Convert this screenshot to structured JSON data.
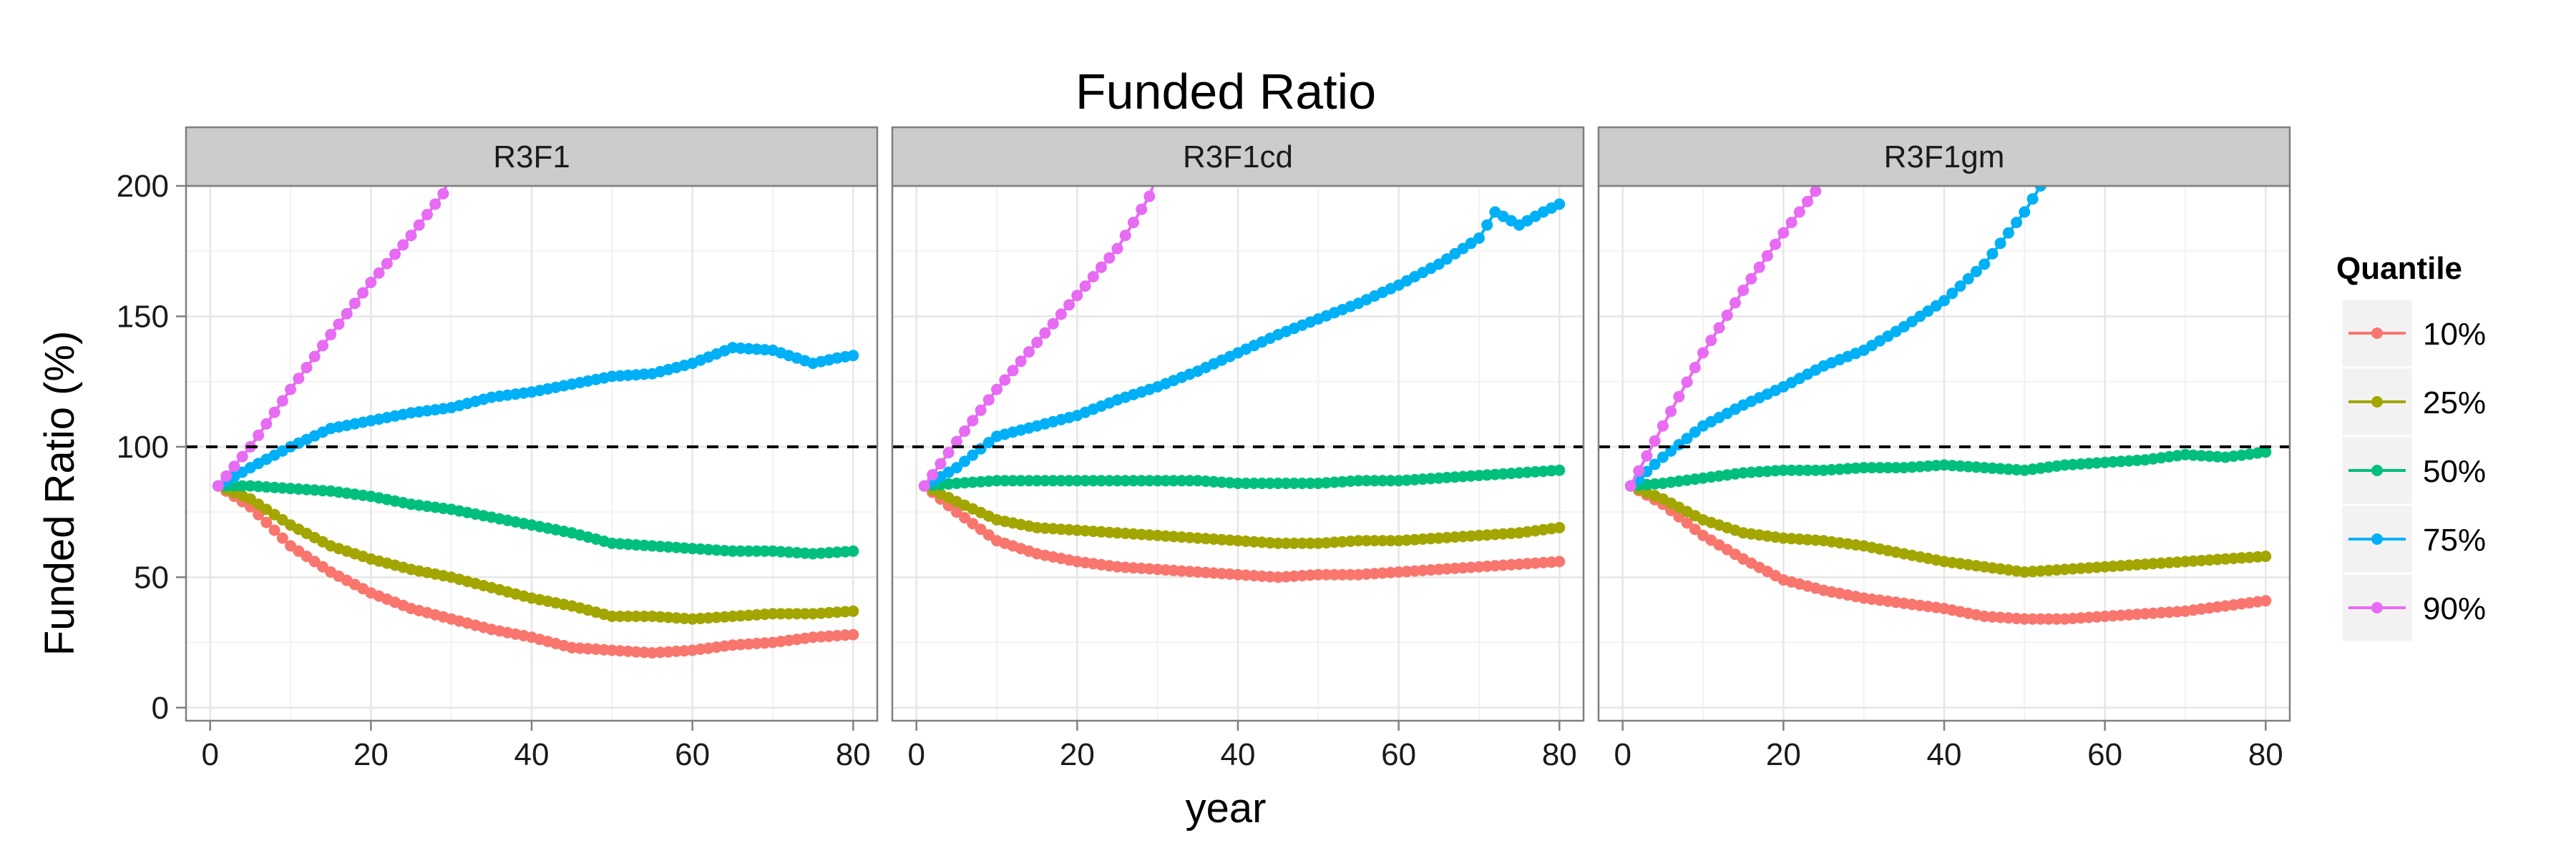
{
  "chart_data": {
    "type": "line",
    "title": "Funded Ratio",
    "xlabel": "year",
    "ylabel": "Funded Ratio (%)",
    "xlim": [
      -3,
      83
    ],
    "ylim": [
      -5,
      200
    ],
    "x_ticks": [
      0,
      20,
      40,
      60,
      80
    ],
    "y_ticks": [
      0,
      50,
      100,
      150,
      200
    ],
    "x_tick_labels": [
      "0",
      "20",
      "40",
      "60",
      "80"
    ],
    "y_tick_labels": [
      "0",
      "50",
      "100",
      "150",
      "200"
    ],
    "reference_line": {
      "y": 100,
      "style": "dashed",
      "color": "#000000"
    },
    "grid": true,
    "panel_background": "#ffffff",
    "strip_background": "#cccccc",
    "legend": {
      "title": "Quantile",
      "placement": "right",
      "entries": [
        "10%",
        "25%",
        "50%",
        "75%",
        "90%"
      ]
    },
    "series_colors": {
      "10%": "#F8766D",
      "25%": "#A3A500",
      "50%": "#00BF7D",
      "75%": "#00B0F6",
      "90%": "#E76BF3"
    },
    "panels": [
      {
        "label": "R3F1",
        "series": [
          {
            "name": "10%",
            "points": [
              [
                1,
                85
              ],
              [
                5,
                77
              ],
              [
                10,
                62
              ],
              [
                15,
                52
              ],
              [
                20,
                44
              ],
              [
                25,
                38
              ],
              [
                30,
                34
              ],
              [
                35,
                30
              ],
              [
                40,
                27
              ],
              [
                45,
                23
              ],
              [
                50,
                22
              ],
              [
                55,
                21
              ],
              [
                60,
                22
              ],
              [
                65,
                24
              ],
              [
                70,
                25
              ],
              [
                75,
                27
              ],
              [
                80,
                28
              ]
            ]
          },
          {
            "name": "25%",
            "points": [
              [
                1,
                85
              ],
              [
                5,
                80
              ],
              [
                10,
                70
              ],
              [
                15,
                62
              ],
              [
                20,
                57
              ],
              [
                25,
                53
              ],
              [
                30,
                50
              ],
              [
                35,
                46
              ],
              [
                40,
                42
              ],
              [
                45,
                39
              ],
              [
                50,
                35
              ],
              [
                55,
                35
              ],
              [
                60,
                34
              ],
              [
                65,
                35
              ],
              [
                70,
                36
              ],
              [
                75,
                36
              ],
              [
                80,
                37
              ]
            ]
          },
          {
            "name": "50%",
            "points": [
              [
                1,
                85
              ],
              [
                5,
                85
              ],
              [
                10,
                84
              ],
              [
                15,
                83
              ],
              [
                20,
                81
              ],
              [
                25,
                78
              ],
              [
                30,
                76
              ],
              [
                35,
                73
              ],
              [
                40,
                70
              ],
              [
                45,
                67
              ],
              [
                50,
                63
              ],
              [
                55,
                62
              ],
              [
                60,
                61
              ],
              [
                65,
                60
              ],
              [
                70,
                60
              ],
              [
                75,
                59
              ],
              [
                80,
                60
              ]
            ]
          },
          {
            "name": "75%",
            "points": [
              [
                1,
                85
              ],
              [
                5,
                92
              ],
              [
                10,
                100
              ],
              [
                15,
                107
              ],
              [
                20,
                110
              ],
              [
                25,
                113
              ],
              [
                30,
                115
              ],
              [
                35,
                119
              ],
              [
                40,
                121
              ],
              [
                45,
                124
              ],
              [
                50,
                127
              ],
              [
                55,
                128
              ],
              [
                60,
                132
              ],
              [
                65,
                138
              ],
              [
                70,
                137
              ],
              [
                75,
                132
              ],
              [
                78,
                134
              ],
              [
                80,
                135
              ]
            ]
          },
          {
            "name": "90%",
            "points": [
              [
                1,
                85
              ],
              [
                5,
                100
              ],
              [
                10,
                122
              ],
              [
                15,
                143
              ],
              [
                20,
                163
              ],
              [
                25,
                181
              ],
              [
                29,
                197
              ],
              [
                30,
                205
              ]
            ]
          }
        ]
      },
      {
        "label": "R3F1cd",
        "series": [
          {
            "name": "10%",
            "points": [
              [
                1,
                85
              ],
              [
                5,
                75
              ],
              [
                10,
                64
              ],
              [
                15,
                59
              ],
              [
                20,
                56
              ],
              [
                25,
                54
              ],
              [
                30,
                53
              ],
              [
                35,
                52
              ],
              [
                40,
                51
              ],
              [
                45,
                50
              ],
              [
                50,
                51
              ],
              [
                55,
                51
              ],
              [
                60,
                52
              ],
              [
                65,
                53
              ],
              [
                70,
                54
              ],
              [
                75,
                55
              ],
              [
                80,
                56
              ]
            ]
          },
          {
            "name": "25%",
            "points": [
              [
                1,
                85
              ],
              [
                5,
                79
              ],
              [
                10,
                72
              ],
              [
                15,
                69
              ],
              [
                20,
                68
              ],
              [
                25,
                67
              ],
              [
                30,
                66
              ],
              [
                35,
                65
              ],
              [
                40,
                64
              ],
              [
                45,
                63
              ],
              [
                50,
                63
              ],
              [
                55,
                64
              ],
              [
                60,
                64
              ],
              [
                65,
                65
              ],
              [
                70,
                66
              ],
              [
                75,
                67
              ],
              [
                80,
                69
              ]
            ]
          },
          {
            "name": "50%",
            "points": [
              [
                1,
                85
              ],
              [
                5,
                86
              ],
              [
                10,
                87
              ],
              [
                15,
                87
              ],
              [
                20,
                87
              ],
              [
                25,
                87
              ],
              [
                30,
                87
              ],
              [
                35,
                87
              ],
              [
                40,
                86
              ],
              [
                45,
                86
              ],
              [
                50,
                86
              ],
              [
                55,
                87
              ],
              [
                60,
                87
              ],
              [
                65,
                88
              ],
              [
                70,
                89
              ],
              [
                75,
                90
              ],
              [
                80,
                91
              ]
            ]
          },
          {
            "name": "75%",
            "points": [
              [
                1,
                85
              ],
              [
                5,
                92
              ],
              [
                10,
                104
              ],
              [
                15,
                108
              ],
              [
                20,
                112
              ],
              [
                25,
                118
              ],
              [
                30,
                123
              ],
              [
                35,
                129
              ],
              [
                40,
                136
              ],
              [
                45,
                143
              ],
              [
                50,
                149
              ],
              [
                55,
                155
              ],
              [
                60,
                162
              ],
              [
                65,
                170
              ],
              [
                70,
                180
              ],
              [
                72,
                190
              ],
              [
                75,
                185
              ],
              [
                78,
                190
              ],
              [
                80,
                193
              ]
            ]
          },
          {
            "name": "90%",
            "points": [
              [
                1,
                85
              ],
              [
                5,
                102
              ],
              [
                10,
                122
              ],
              [
                15,
                140
              ],
              [
                20,
                158
              ],
              [
                25,
                176
              ],
              [
                29,
                196
              ],
              [
                30,
                205
              ]
            ]
          }
        ]
      },
      {
        "label": "R3F1gm",
        "series": [
          {
            "name": "10%",
            "points": [
              [
                1,
                85
              ],
              [
                5,
                78
              ],
              [
                10,
                66
              ],
              [
                15,
                57
              ],
              [
                20,
                49
              ],
              [
                25,
                45
              ],
              [
                30,
                42
              ],
              [
                35,
                40
              ],
              [
                40,
                38
              ],
              [
                45,
                35
              ],
              [
                50,
                34
              ],
              [
                55,
                34
              ],
              [
                60,
                35
              ],
              [
                65,
                36
              ],
              [
                70,
                37
              ],
              [
                75,
                39
              ],
              [
                80,
                41
              ]
            ]
          },
          {
            "name": "25%",
            "points": [
              [
                1,
                85
              ],
              [
                5,
                80
              ],
              [
                10,
                72
              ],
              [
                15,
                67
              ],
              [
                20,
                65
              ],
              [
                25,
                64
              ],
              [
                30,
                62
              ],
              [
                35,
                59
              ],
              [
                40,
                56
              ],
              [
                45,
                54
              ],
              [
                50,
                52
              ],
              [
                55,
                53
              ],
              [
                60,
                54
              ],
              [
                65,
                55
              ],
              [
                70,
                56
              ],
              [
                75,
                57
              ],
              [
                80,
                58
              ]
            ]
          },
          {
            "name": "50%",
            "points": [
              [
                1,
                85
              ],
              [
                5,
                86
              ],
              [
                10,
                88
              ],
              [
                15,
                90
              ],
              [
                20,
                91
              ],
              [
                25,
                91
              ],
              [
                30,
                92
              ],
              [
                35,
                92
              ],
              [
                40,
                93
              ],
              [
                45,
                92
              ],
              [
                50,
                91
              ],
              [
                55,
                93
              ],
              [
                60,
                94
              ],
              [
                65,
                95
              ],
              [
                70,
                97
              ],
              [
                75,
                96
              ],
              [
                80,
                98
              ]
            ]
          },
          {
            "name": "75%",
            "points": [
              [
                1,
                85
              ],
              [
                5,
                96
              ],
              [
                10,
                108
              ],
              [
                15,
                116
              ],
              [
                20,
                123
              ],
              [
                25,
                131
              ],
              [
                30,
                137
              ],
              [
                35,
                146
              ],
              [
                40,
                156
              ],
              [
                45,
                170
              ],
              [
                50,
                190
              ],
              [
                52,
                200
              ],
              [
                54,
                208
              ]
            ]
          },
          {
            "name": "90%",
            "points": [
              [
                1,
                85
              ],
              [
                5,
                108
              ],
              [
                10,
                136
              ],
              [
                15,
                160
              ],
              [
                20,
                182
              ],
              [
                24,
                198
              ],
              [
                25,
                205
              ]
            ]
          }
        ]
      }
    ]
  }
}
